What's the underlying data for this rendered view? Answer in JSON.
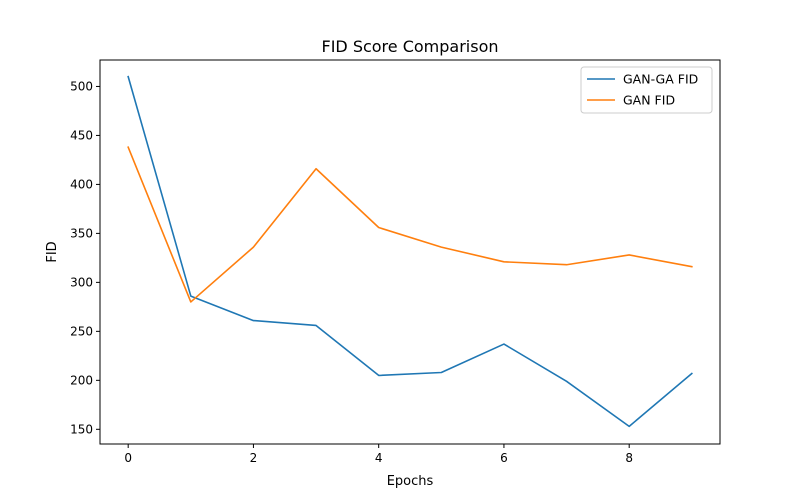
{
  "chart_data": {
    "type": "line",
    "title": "FID Score Comparison",
    "xlabel": "Epochs",
    "ylabel": "FID",
    "x": [
      0,
      1,
      2,
      3,
      4,
      5,
      6,
      7,
      8,
      9
    ],
    "xlim": [
      -0.45,
      9.45
    ],
    "ylim": [
      135,
      527
    ],
    "xticks": [
      0,
      2,
      4,
      6,
      8
    ],
    "yticks": [
      150,
      200,
      250,
      300,
      350,
      400,
      450,
      500
    ],
    "grid": false,
    "legend_position": "top-right",
    "series": [
      {
        "name": "GAN-GA FID",
        "color": "#1f77b4",
        "values": [
          510,
          286,
          261,
          256,
          205,
          208,
          237,
          199,
          153,
          207
        ]
      },
      {
        "name": "GAN FID",
        "color": "#ff7f0e",
        "values": [
          438,
          280,
          336,
          416,
          356,
          336,
          321,
          318,
          328,
          316
        ]
      }
    ]
  }
}
